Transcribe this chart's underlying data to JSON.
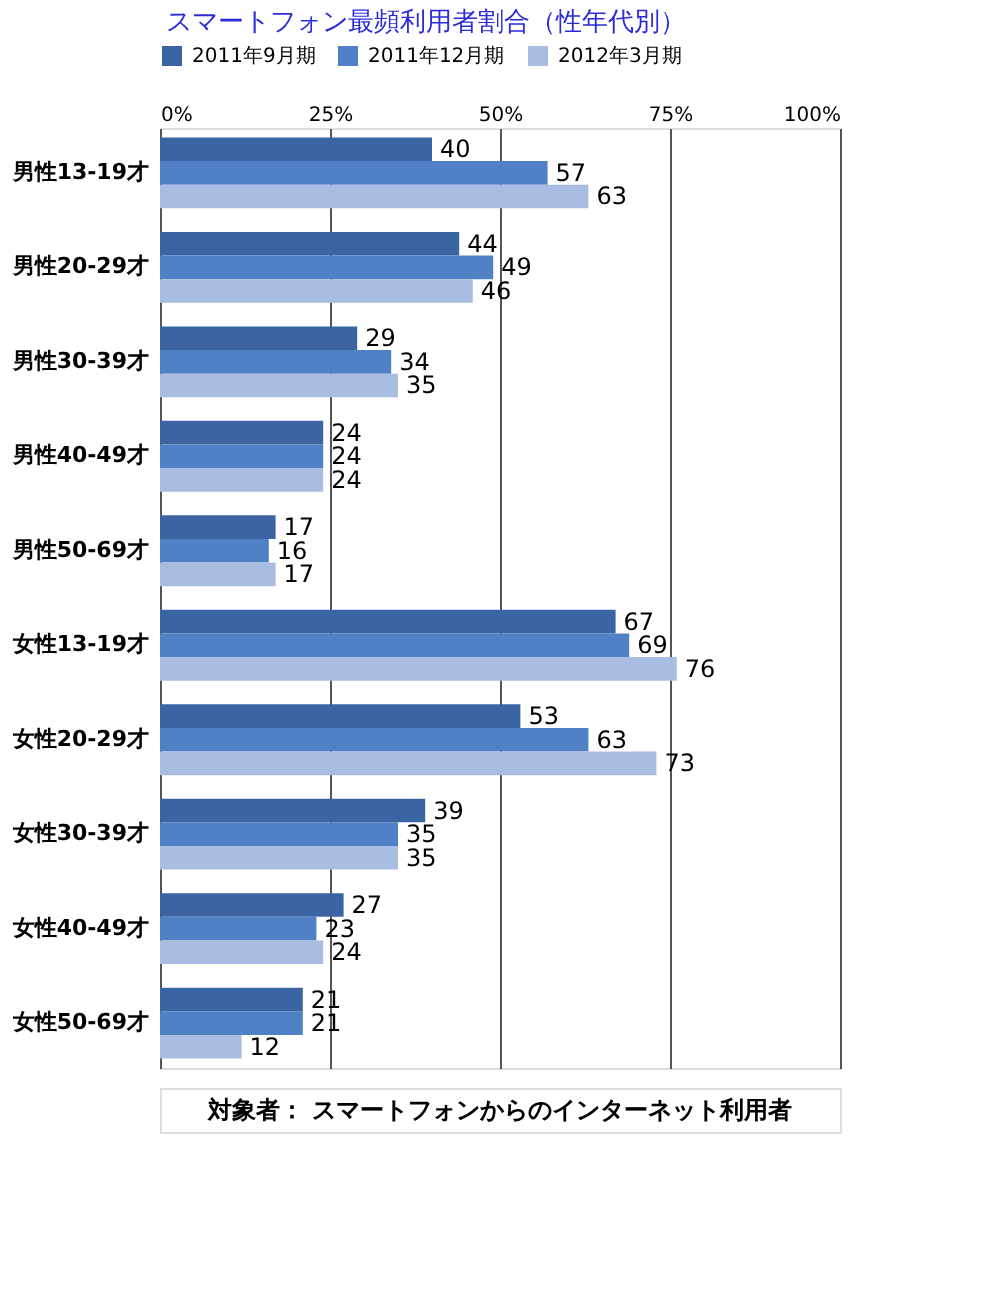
{
  "chart_data": {
    "type": "bar",
    "orientation": "horizontal",
    "title": "スマートフォン最頻利用者割合（性年代別）",
    "categories": [
      "男性13-19才",
      "男性20-29才",
      "男性30-39才",
      "男性40-49才",
      "男性50-69才",
      "女性13-19才",
      "女性20-29才",
      "女性30-39才",
      "女性40-49才",
      "女性50-69才"
    ],
    "series": [
      {
        "name": "2011年9月期",
        "color": "#3b64a3",
        "values": [
          40,
          44,
          29,
          24,
          17,
          67,
          53,
          39,
          27,
          21
        ]
      },
      {
        "name": "2011年12月期",
        "color": "#4f81c4",
        "values": [
          57,
          49,
          34,
          24,
          16,
          69,
          63,
          35,
          23,
          21
        ]
      },
      {
        "name": "2012年3月期",
        "color": "#a9bde3",
        "values": [
          63,
          46,
          35,
          24,
          17,
          76,
          73,
          35,
          24,
          12
        ]
      }
    ],
    "xlim": [
      0,
      100
    ],
    "xticks": [
      {
        "value": 0,
        "label": "0%"
      },
      {
        "value": 25,
        "label": "25%"
      },
      {
        "value": 50,
        "label": "50%"
      },
      {
        "value": 75,
        "label": "75%"
      },
      {
        "value": 100,
        "label": "100%"
      }
    ],
    "grid": "x",
    "legend": "top",
    "data_labels": true,
    "annotations": [
      "対象者： スマートフォンからのインターネット利用者"
    ]
  }
}
